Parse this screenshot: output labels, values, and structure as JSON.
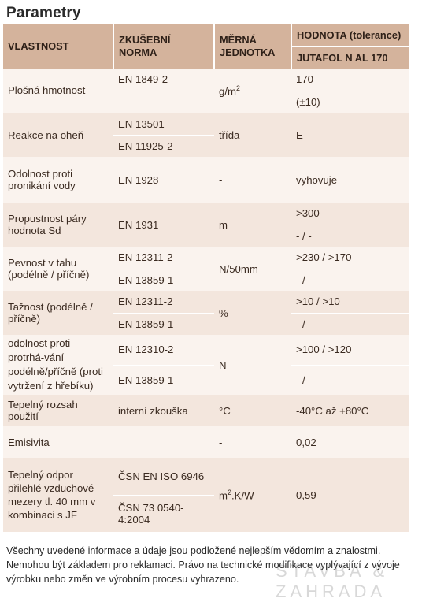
{
  "title": "Parametry",
  "header": {
    "col1": "VLASTNOST",
    "col2": "ZKUŠEBNÍ NORMA",
    "col3": "MĚRNÁ JEDNOTKA",
    "col4a": "HODNOTA (tolerance)",
    "col4b": "JUTAFOL N AL 170"
  },
  "rows": {
    "plosna": {
      "name": "Plošná hmotnost",
      "norm": "EN 1849-2",
      "unit_base": "g/m",
      "unit_sup": "2",
      "val1": "170",
      "val2": "(±10)"
    },
    "reakce": {
      "name": "Reakce na oheň",
      "norm1": "EN 13501",
      "norm2": "EN 11925-2",
      "unit": "třída",
      "val": "E"
    },
    "odolnost": {
      "name": "Odolnost proti pronikání vody",
      "norm": "EN 1928",
      "unit": "-",
      "val": "vyhovuje"
    },
    "propustnost": {
      "name": "Propustnost páry hodnota Sd",
      "norm": "EN 1931",
      "unit": "m",
      "val1": ">300",
      "val2": "- / -"
    },
    "pevnost": {
      "name": "Pevnost v tahu (podélně / příčně)",
      "norm1": "EN 12311-2",
      "norm2": "EN 13859-1",
      "unit": "N/50mm",
      "val1": ">230 / >170",
      "val2": "- / -"
    },
    "taznost": {
      "name": "Tažnost (podélně / příčně)",
      "norm1": "EN 12311-2",
      "norm2": "EN 13859-1",
      "unit": "%",
      "val1": ">10 / >10",
      "val2": "- / -"
    },
    "protrhani": {
      "name": "odolnost proti protrhá-vání podélně/příčně (proti vytržení z hřebíku)",
      "norm1": "EN 12310-2",
      "norm2": "EN 13859-1",
      "unit": "N",
      "val1": ">100 / >120",
      "val2": "- / -"
    },
    "tepelny": {
      "name": "Tepelný rozsah použití",
      "norm": "interní zkouška",
      "unit": "°C",
      "val": "-40°C až +80°C"
    },
    "emisivita": {
      "name": "Emisivita",
      "norm": "",
      "unit": "-",
      "val": "0,02"
    },
    "odpor": {
      "name": "Tepelný odpor přilehlé vzduchové mezery tl. 40 mm v kombinaci s JF",
      "norm1": "ČSN EN ISO 6946",
      "norm2": "ČSN 73 0540-4:2004",
      "unit_base": "m",
      "unit_sup": "2",
      "unit_tail": ".K/W",
      "val": "0,59"
    }
  },
  "footnote": "Všechny uvedené informace a údaje jsou podložené nejlepším vědomím a znalostmi. Nemohou být základem pro reklamaci. Právo na technické modifikace vyplývající z vývoje výrobku nebo změn ve výrobním procesu vyhrazeno.",
  "watermark": "STAVBA & ZAHRADA"
}
